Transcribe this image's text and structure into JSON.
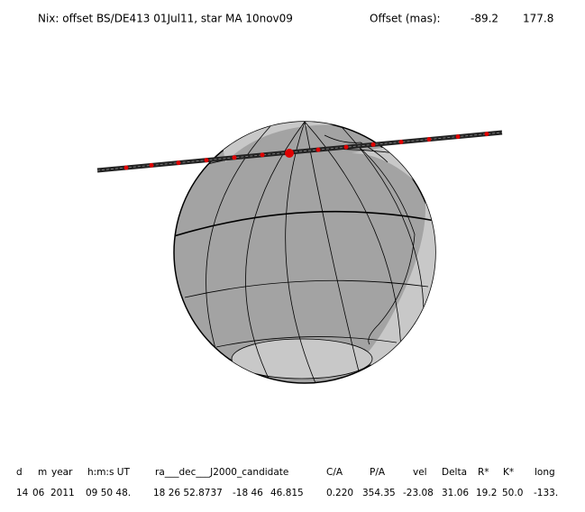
{
  "header": {
    "title": "Nix: offset BS/DE413 01Jul11, star MA 10nov09",
    "offset_label": "Offset (mas):",
    "offset_values": [
      "-89.2",
      "177.8"
    ]
  },
  "table": {
    "columns": [
      "d",
      "m",
      "year",
      "h:m:s UT",
      "ra___dec___J2000_candidate",
      "C/A",
      "P/A",
      "vel",
      "Delta",
      "R*",
      "K*",
      "long"
    ],
    "rows": [
      [
        "14",
        "06",
        "2011",
        "09 50 48.",
        "18 26 52.8737",
        "-18 46",
        "46.815",
        "0.220",
        "354.35",
        "-23.08",
        "31.06",
        "19.2",
        "50.0",
        "-133."
      ]
    ]
  }
}
